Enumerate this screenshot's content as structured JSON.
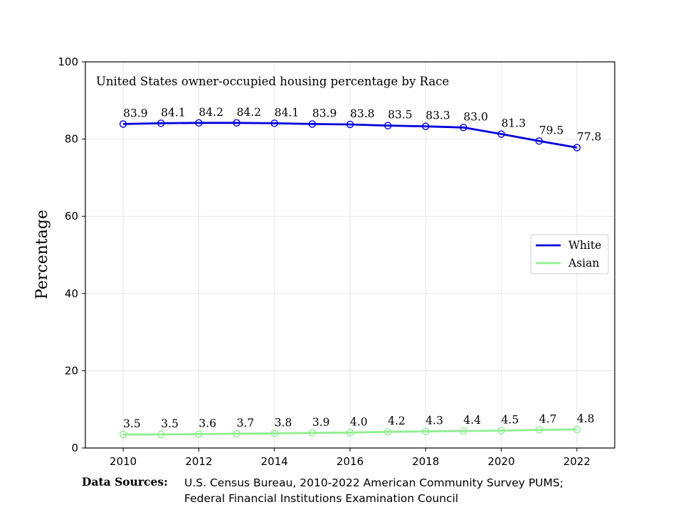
{
  "chart_data": {
    "type": "line",
    "title": "United States owner-occupied housing percentage by Race",
    "xlabel": "",
    "ylabel": "Percentage",
    "x": [
      2010,
      2011,
      2012,
      2013,
      2014,
      2015,
      2016,
      2017,
      2018,
      2019,
      2020,
      2021,
      2022
    ],
    "xticks": [
      2010,
      2012,
      2014,
      2016,
      2018,
      2020,
      2022
    ],
    "yticks": [
      0,
      20,
      40,
      60,
      80,
      100
    ],
    "xlim": [
      2009,
      2023
    ],
    "ylim": [
      0,
      100
    ],
    "grid": true,
    "legend_position": "center-right",
    "series": [
      {
        "name": "White",
        "color": "#0000dd",
        "marker": "open-circle",
        "values": [
          83.9,
          84.1,
          84.2,
          84.2,
          84.1,
          83.9,
          83.8,
          83.5,
          83.3,
          83.0,
          81.3,
          79.5,
          77.8
        ],
        "labels": [
          "83.9",
          "84.1",
          "84.2",
          "84.2",
          "84.1",
          "83.9",
          "83.8",
          "83.5",
          "83.3",
          "83.0",
          "81.3",
          "79.5",
          "77.8"
        ]
      },
      {
        "name": "Asian",
        "color": "#90ee90",
        "marker": "open-circle",
        "values": [
          3.5,
          3.5,
          3.6,
          3.7,
          3.8,
          3.9,
          4.0,
          4.2,
          4.3,
          4.4,
          4.5,
          4.7,
          4.8
        ],
        "labels": [
          "3.5",
          "3.5",
          "3.6",
          "3.7",
          "3.8",
          "3.9",
          "4.0",
          "4.2",
          "4.3",
          "4.4",
          "4.5",
          "4.7",
          "4.8"
        ]
      }
    ]
  },
  "sources": {
    "heading": "Data Sources:",
    "line1": "U.S. Census Bureau, 2010-2022 American Community Survey PUMS;",
    "line2": "Federal Financial Institutions Examination Council"
  }
}
